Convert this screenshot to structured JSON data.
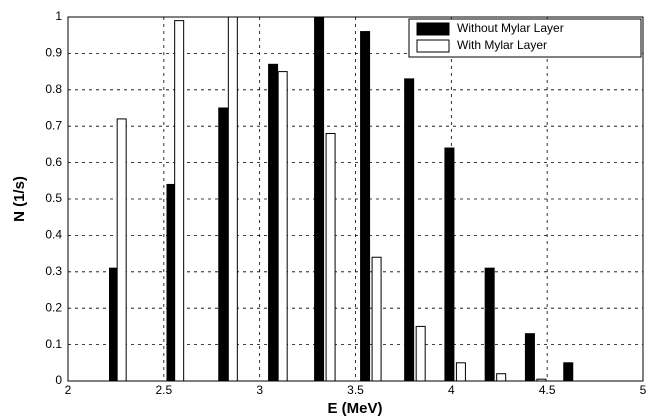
{
  "chart_data": {
    "type": "bar",
    "xlabel": "E  (MeV)",
    "ylabel": "N  (1/s)",
    "series": [
      {
        "name": "Without Mylar Layer",
        "color": "#000000",
        "x": [
          2.24,
          2.54,
          2.81,
          3.07,
          3.31,
          3.55,
          3.78,
          3.99,
          4.2,
          4.41,
          4.61
        ],
        "values": [
          0.31,
          0.54,
          0.75,
          0.87,
          1.0,
          0.96,
          0.83,
          0.64,
          0.31,
          0.13,
          0.05
        ]
      },
      {
        "name": "With Mylar Layer",
        "color": "#ffffff",
        "x": [
          2.28,
          2.58,
          2.86,
          3.12,
          3.37,
          3.61,
          3.84,
          4.05,
          4.26,
          4.47
        ],
        "values": [
          0.72,
          0.99,
          1.0,
          0.85,
          0.68,
          0.34,
          0.15,
          0.05,
          0.02,
          0.005
        ]
      }
    ],
    "xlim": [
      2,
      5
    ],
    "xticks": [
      2,
      2.5,
      3,
      3.5,
      4,
      4.5,
      5
    ],
    "ylim": [
      0,
      1
    ],
    "yticks": [
      0,
      0.1,
      0.2,
      0.3,
      0.4,
      0.5,
      0.6,
      0.7,
      0.8,
      0.9,
      1
    ],
    "grid": true,
    "legend": "upper right"
  }
}
